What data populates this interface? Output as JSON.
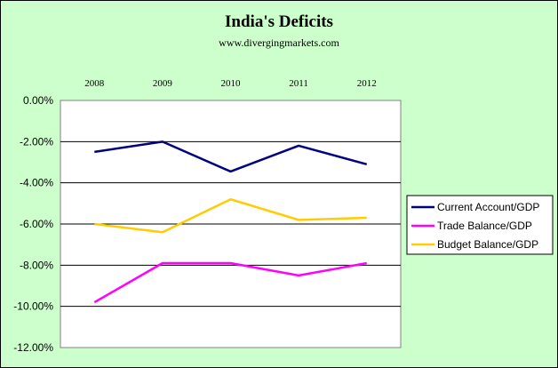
{
  "chart_data": {
    "type": "line",
    "title": "India's Deficits",
    "subtitle": "www.divergingmarkets.com",
    "categories": [
      "2008",
      "2009",
      "2010",
      "2011",
      "2012"
    ],
    "x_axis_position": "top",
    "ylim": [
      -0.12,
      0.0
    ],
    "y_ticks": [
      "0.00%",
      "-2.00%",
      "-4.00%",
      "-6.00%",
      "-8.00%",
      "-10.00%",
      "-12.00%"
    ],
    "grid": true,
    "legend_position": "right",
    "series": [
      {
        "name": "Current Account/GDP",
        "color": "#000080",
        "values": [
          -0.025,
          -0.02,
          -0.0345,
          -0.022,
          -0.031
        ]
      },
      {
        "name": "Trade Balance/GDP",
        "color": "#ff00ff",
        "values": [
          -0.098,
          -0.079,
          -0.079,
          -0.085,
          -0.079
        ]
      },
      {
        "name": "Budget Balance/GDP",
        "color": "#ffcc00",
        "values": [
          -0.06,
          -0.064,
          -0.048,
          -0.058,
          -0.057
        ]
      }
    ]
  },
  "colors": {
    "chart_background": "#ccffcc",
    "plot_background": "#ffffff",
    "gridline": "#000000"
  }
}
